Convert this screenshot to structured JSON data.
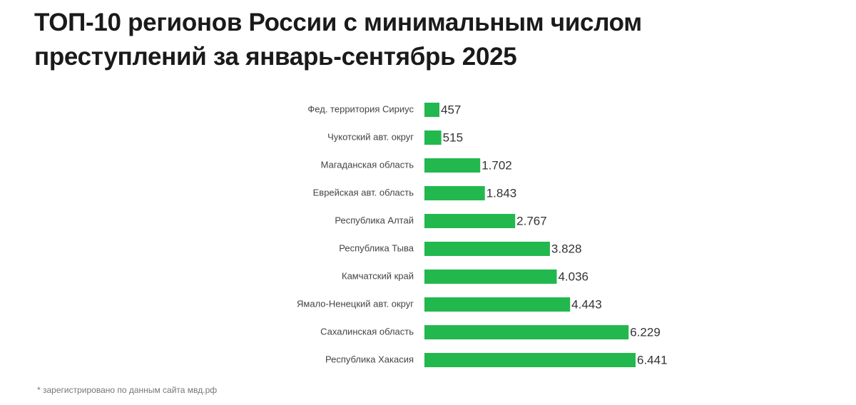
{
  "chart_data": {
    "type": "bar",
    "orientation": "horizontal",
    "title": "ТОП-10 регионов России с минимальным числом преступлений за январь-сентябрь 2025",
    "categories": [
      "Фед. территория Сириус",
      "Чукотский авт. округ",
      "Магаданская область",
      "Еврейская авт. область",
      "Республика Алтай",
      "Республика Тыва",
      "Камчатский край",
      "Ямало-Ненецкий авт. округ",
      "Сахалинская область",
      "Республика Хакасия"
    ],
    "values": [
      457,
      515,
      1702,
      1843,
      2767,
      3828,
      4036,
      4443,
      6229,
      6441
    ],
    "value_labels": [
      "457",
      "515",
      "1.702",
      "1.843",
      "2.767",
      "3.828",
      "4.036",
      "4.443",
      "6.229",
      "6.441"
    ],
    "color": "#22b84e",
    "note": "* зарегистрировано по данным сайта мвд.рф"
  }
}
